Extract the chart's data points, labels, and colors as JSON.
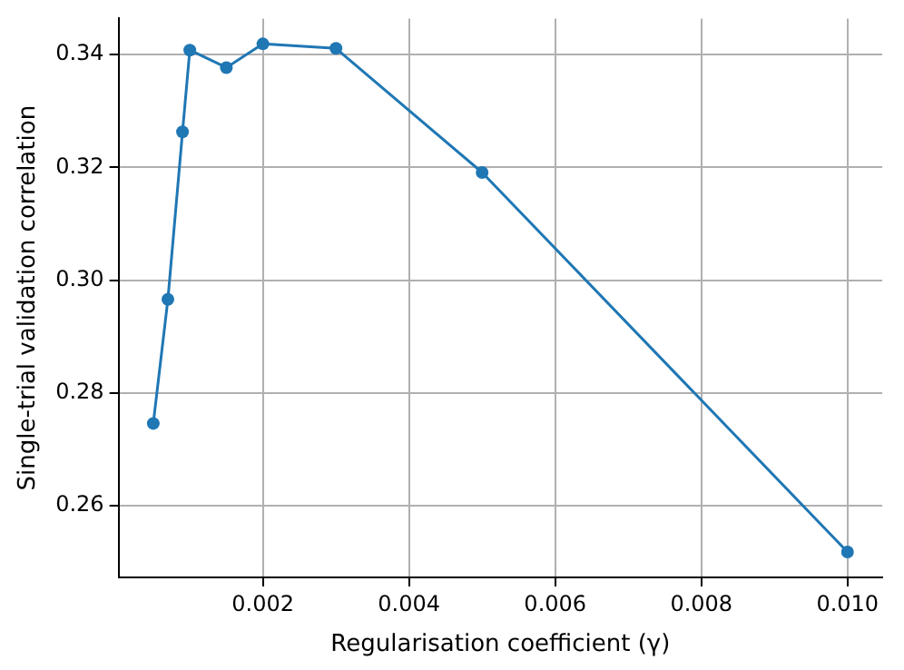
{
  "chart_data": {
    "type": "line",
    "xlabel": "Regularisation coefficient (γ)",
    "ylabel": "Single-trial validation correlation",
    "x": [
      0.0005,
      0.0007,
      0.0009,
      0.001,
      0.0015,
      0.002,
      0.003,
      0.005,
      0.01
    ],
    "series": [
      {
        "color": "#1f77b4",
        "values": [
          0.2746,
          0.2966,
          0.3263,
          0.3408,
          0.3377,
          0.3419,
          0.3411,
          0.3191,
          0.2518
        ]
      }
    ],
    "xlim": [
      2.5e-05,
      0.010475
    ],
    "xticks": [
      0.002,
      0.004,
      0.006,
      0.008,
      {
        "value": 0.01,
        "label": "0.010"
      }
    ],
    "ylim": [
      0.2473,
      0.3464
    ],
    "yticks": [
      0.26,
      0.28,
      {
        "value": 0.3,
        "label": "0.30"
      },
      0.32,
      0.34
    ],
    "grid": true,
    "marker": "circle",
    "line_style": "solid",
    "legend": false
  }
}
